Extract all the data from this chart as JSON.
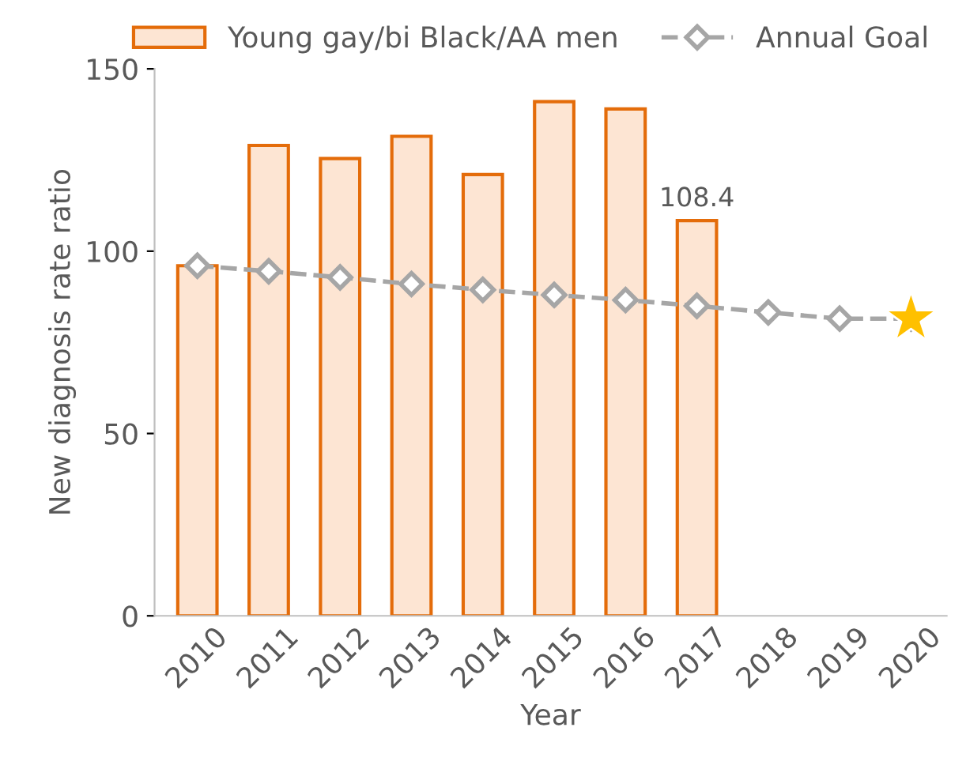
{
  "chart_data": {
    "type": "bar",
    "xlabel": "Year",
    "ylabel": "New diagnosis rate ratio",
    "categories": [
      "2010",
      "2011",
      "2012",
      "2013",
      "2014",
      "2015",
      "2016",
      "2017",
      "2018",
      "2019",
      "2020"
    ],
    "series": [
      {
        "name": "Young gay/bi Black/AA men",
        "color": "#fde5d3",
        "values": [
          96,
          129,
          125.4,
          131.5,
          121,
          141,
          139,
          108.4,
          null,
          null,
          null
        ],
        "value_labels": [
          null,
          null,
          null,
          null,
          null,
          null,
          null,
          "108.4",
          null,
          null,
          null
        ]
      },
      {
        "name": "Annual Goal",
        "type": "line",
        "color": "#a6a6a6",
        "marker": "diamond",
        "line_style": "dashed",
        "values": [
          96,
          94.5,
          92.8,
          91,
          89.4,
          88,
          86.6,
          85,
          83.2,
          81.5,
          81.5
        ]
      },
      {
        "type": "scatter",
        "color": "#ffc000",
        "marker": "star",
        "values": [
          null,
          null,
          null,
          null,
          null,
          null,
          null,
          null,
          null,
          null,
          81.5
        ]
      }
    ],
    "ylim": [
      0,
      150
    ],
    "yticks": [
      0,
      50,
      100,
      150
    ],
    "grid": false,
    "legend": "top"
  }
}
